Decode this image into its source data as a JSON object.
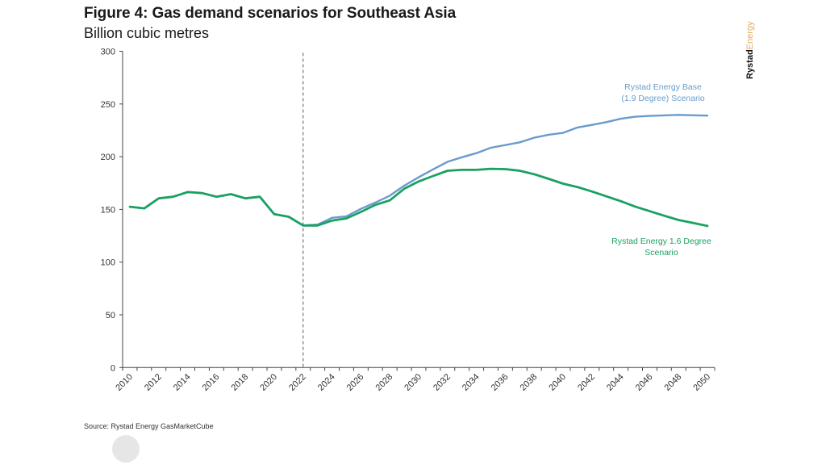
{
  "header": {
    "title": "Figure 4: Gas demand scenarios for Southeast Asia",
    "subtitle": "Billion cubic metres"
  },
  "brand": {
    "part1": "Rystad",
    "part2": "Energy"
  },
  "footer": {
    "source": "Source: Rystad Energy GasMarketCube"
  },
  "chart_data": {
    "type": "line",
    "title": "Figure 4: Gas demand scenarios for Southeast Asia",
    "subtitle": "Billion cubic metres",
    "xlabel": "",
    "ylabel": "Billion cubic metres",
    "ylim": [
      0,
      300
    ],
    "yticks": [
      0,
      50,
      100,
      150,
      200,
      250,
      300
    ],
    "xticks": [
      "2010",
      "2012",
      "2014",
      "2016",
      "2018",
      "2020",
      "2022",
      "2024",
      "2026",
      "2028",
      "2030",
      "2032",
      "2034",
      "2036",
      "2038",
      "2040",
      "2042",
      "2044",
      "2046",
      "2048",
      "2050"
    ],
    "x": [
      2010,
      2011,
      2012,
      2013,
      2014,
      2015,
      2016,
      2017,
      2018,
      2019,
      2020,
      2021,
      2022,
      2023,
      2024,
      2025,
      2026,
      2027,
      2028,
      2029,
      2030,
      2031,
      2032,
      2033,
      2034,
      2035,
      2036,
      2037,
      2038,
      2039,
      2040,
      2041,
      2042,
      2043,
      2044,
      2045,
      2046,
      2047,
      2048,
      2049,
      2050
    ],
    "grid": false,
    "vertical_marker": {
      "x": 2022,
      "style": "dashed"
    },
    "series": [
      {
        "name": "Rystad Energy Base (1.9 Degree) Scenario",
        "label_lines": [
          "Rystad Energy Base",
          "(1.9 Degree) Scenario"
        ],
        "color": "#6a9ccb",
        "values": [
          152.5,
          151,
          160.5,
          162,
          166.5,
          165.5,
          162,
          164.5,
          160.5,
          162,
          145.5,
          143,
          134.8,
          135.6,
          142,
          143.5,
          150.5,
          156.5,
          163,
          172.5,
          180.5,
          188,
          195.2,
          199.5,
          203.4,
          208.5,
          211,
          213.6,
          218,
          220.8,
          222.6,
          227.7,
          230.2,
          232.8,
          236,
          237.9,
          238.7,
          239.2,
          239.7,
          239.3,
          239
        ]
      },
      {
        "name": "Rystad Energy 1.6 Degree Scenario",
        "label_lines": [
          "Rystad Energy 1.6 Degree",
          "Scenario"
        ],
        "color": "#1aa160",
        "values": [
          152.5,
          151,
          160.5,
          162,
          166.5,
          165.5,
          162,
          164.5,
          160.5,
          162,
          145.5,
          143,
          134.8,
          134.8,
          139.4,
          141.5,
          147.6,
          154.3,
          158.6,
          169.6,
          176.5,
          181.7,
          186.7,
          187.5,
          187.5,
          188.5,
          188.2,
          186.7,
          183.4,
          179,
          174.4,
          171.2,
          167,
          162.4,
          157.8,
          152.7,
          148.3,
          144,
          140,
          137.2,
          134.3
        ]
      }
    ]
  }
}
